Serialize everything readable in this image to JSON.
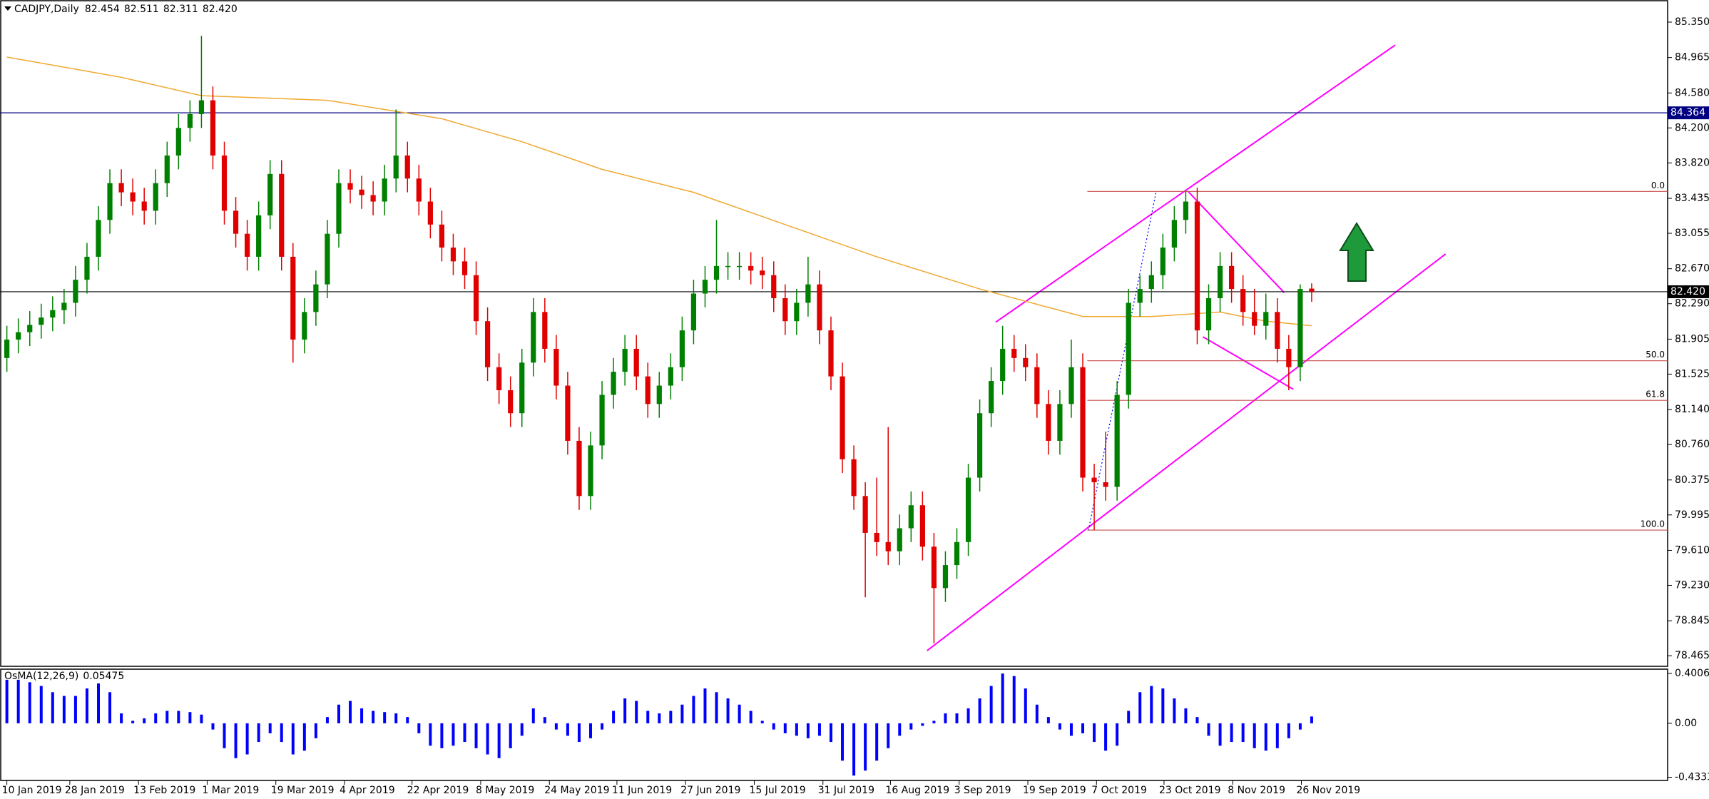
{
  "chart_data": {
    "type": "candlestick",
    "header": {
      "symbol": "CADJPY,Daily",
      "quote": [
        "82.454",
        "82.511",
        "82.311",
        "82.420"
      ]
    },
    "bull_color": "#008000",
    "bear_color": "#e00000",
    "ohlc": [
      [
        81.7,
        82.05,
        81.55,
        81.9
      ],
      [
        81.9,
        82.13,
        81.75,
        81.98
      ],
      [
        81.98,
        82.21,
        81.83,
        82.06
      ],
      [
        82.06,
        82.29,
        81.91,
        82.14
      ],
      [
        82.14,
        82.37,
        81.99,
        82.22
      ],
      [
        82.22,
        82.45,
        82.07,
        82.3
      ],
      [
        82.3,
        82.7,
        82.15,
        82.55
      ],
      [
        82.55,
        82.95,
        82.4,
        82.8
      ],
      [
        82.8,
        83.35,
        82.65,
        83.2
      ],
      [
        83.2,
        83.75,
        83.05,
        83.6
      ],
      [
        83.6,
        83.75,
        83.35,
        83.5
      ],
      [
        83.5,
        83.65,
        83.25,
        83.4
      ],
      [
        83.4,
        83.55,
        83.15,
        83.3
      ],
      [
        83.3,
        83.75,
        83.15,
        83.6
      ],
      [
        83.6,
        84.05,
        83.45,
        83.9
      ],
      [
        83.9,
        84.35,
        83.75,
        84.2
      ],
      [
        84.2,
        84.5,
        84.05,
        84.35
      ],
      [
        84.35,
        85.2,
        84.2,
        84.5
      ],
      [
        84.5,
        84.65,
        83.75,
        83.9
      ],
      [
        83.9,
        84.05,
        83.15,
        83.3
      ],
      [
        83.3,
        83.45,
        82.9,
        83.05
      ],
      [
        83.05,
        83.2,
        82.65,
        82.8
      ],
      [
        82.8,
        83.4,
        82.65,
        83.25
      ],
      [
        83.25,
        83.85,
        83.1,
        83.7
      ],
      [
        83.7,
        83.85,
        82.65,
        82.8
      ],
      [
        82.8,
        82.95,
        81.65,
        81.9
      ],
      [
        81.9,
        82.35,
        81.75,
        82.2
      ],
      [
        82.2,
        82.65,
        82.05,
        82.5
      ],
      [
        82.5,
        83.2,
        82.35,
        83.05
      ],
      [
        83.05,
        83.75,
        82.9,
        83.6
      ],
      [
        83.6,
        83.75,
        83.38,
        83.53
      ],
      [
        83.53,
        83.68,
        83.32,
        83.47
      ],
      [
        83.47,
        83.62,
        83.25,
        83.4
      ],
      [
        83.4,
        83.8,
        83.25,
        83.65
      ],
      [
        83.65,
        84.4,
        83.5,
        83.9
      ],
      [
        83.9,
        84.05,
        83.5,
        83.65
      ],
      [
        83.65,
        83.8,
        83.25,
        83.4
      ],
      [
        83.4,
        83.55,
        83.0,
        83.15
      ],
      [
        83.15,
        83.3,
        82.75,
        82.9
      ],
      [
        82.9,
        83.05,
        82.6,
        82.75
      ],
      [
        82.75,
        82.9,
        82.45,
        82.6
      ],
      [
        82.6,
        82.75,
        81.95,
        82.1
      ],
      [
        82.1,
        82.25,
        81.45,
        81.6
      ],
      [
        81.6,
        81.75,
        81.2,
        81.35
      ],
      [
        81.35,
        81.5,
        80.95,
        81.1
      ],
      [
        81.1,
        81.8,
        80.95,
        81.65
      ],
      [
        81.65,
        82.35,
        81.5,
        82.2
      ],
      [
        82.2,
        82.35,
        81.65,
        81.8
      ],
      [
        81.8,
        81.95,
        81.25,
        81.4
      ],
      [
        81.4,
        81.55,
        80.65,
        80.8
      ],
      [
        80.8,
        80.95,
        80.05,
        80.2
      ],
      [
        80.2,
        80.9,
        80.05,
        80.75
      ],
      [
        80.75,
        81.45,
        80.6,
        81.3
      ],
      [
        81.3,
        81.7,
        81.15,
        81.55
      ],
      [
        81.55,
        81.95,
        81.4,
        81.8
      ],
      [
        81.8,
        81.95,
        81.35,
        81.5
      ],
      [
        81.5,
        81.65,
        81.05,
        81.2
      ],
      [
        81.2,
        81.55,
        81.05,
        81.4
      ],
      [
        81.4,
        81.75,
        81.25,
        81.6
      ],
      [
        81.6,
        82.15,
        81.45,
        82.0
      ],
      [
        82.0,
        82.55,
        81.85,
        82.4
      ],
      [
        82.4,
        82.7,
        82.25,
        82.55
      ],
      [
        82.55,
        83.2,
        82.4,
        82.7
      ],
      [
        82.7,
        82.85,
        82.55,
        82.7
      ],
      [
        82.7,
        82.85,
        82.55,
        82.7
      ],
      [
        82.7,
        82.85,
        82.5,
        82.65
      ],
      [
        82.65,
        82.8,
        82.45,
        82.6
      ],
      [
        82.6,
        82.75,
        82.2,
        82.35
      ],
      [
        82.35,
        82.5,
        81.95,
        82.1
      ],
      [
        82.1,
        82.45,
        81.95,
        82.3
      ],
      [
        82.3,
        82.8,
        82.15,
        82.5
      ],
      [
        82.5,
        82.65,
        81.85,
        82.0
      ],
      [
        82.0,
        82.15,
        81.35,
        81.5
      ],
      [
        81.5,
        81.65,
        80.45,
        80.6
      ],
      [
        80.6,
        80.75,
        80.05,
        80.2
      ],
      [
        80.2,
        80.35,
        79.1,
        79.8
      ],
      [
        79.8,
        80.4,
        79.55,
        79.7
      ],
      [
        79.7,
        80.95,
        79.45,
        79.6
      ],
      [
        79.6,
        80.0,
        79.45,
        79.85
      ],
      [
        79.85,
        80.25,
        79.7,
        80.1
      ],
      [
        80.1,
        80.25,
        79.5,
        79.65
      ],
      [
        79.65,
        79.8,
        78.6,
        79.2
      ],
      [
        79.2,
        79.6,
        79.05,
        79.45
      ],
      [
        79.45,
        79.85,
        79.3,
        79.7
      ],
      [
        79.7,
        80.55,
        79.55,
        80.4
      ],
      [
        80.4,
        81.25,
        80.25,
        81.1
      ],
      [
        81.1,
        81.6,
        80.95,
        81.45
      ],
      [
        81.45,
        82.05,
        81.3,
        81.8
      ],
      [
        81.8,
        81.95,
        81.55,
        81.7
      ],
      [
        81.7,
        81.85,
        81.45,
        81.6
      ],
      [
        81.6,
        81.75,
        81.05,
        81.2
      ],
      [
        81.2,
        81.35,
        80.65,
        80.8
      ],
      [
        80.8,
        81.35,
        80.65,
        81.2
      ],
      [
        81.2,
        81.9,
        81.05,
        81.6
      ],
      [
        81.6,
        81.75,
        80.25,
        80.4
      ],
      [
        80.4,
        80.55,
        79.83,
        80.35
      ],
      [
        80.35,
        80.9,
        80.15,
        80.3
      ],
      [
        80.3,
        81.45,
        80.15,
        81.3
      ],
      [
        81.3,
        82.45,
        81.15,
        82.3
      ],
      [
        82.3,
        82.6,
        82.15,
        82.45
      ],
      [
        82.45,
        82.75,
        82.3,
        82.6
      ],
      [
        82.6,
        83.05,
        82.45,
        82.9
      ],
      [
        82.9,
        83.35,
        82.75,
        83.2
      ],
      [
        83.2,
        83.51,
        83.05,
        83.4
      ],
      [
        83.4,
        83.55,
        81.85,
        82.0
      ],
      [
        82.0,
        82.5,
        81.85,
        82.35
      ],
      [
        82.35,
        82.85,
        82.2,
        82.7
      ],
      [
        82.7,
        82.85,
        82.3,
        82.45
      ],
      [
        82.45,
        82.6,
        82.05,
        82.2
      ],
      [
        82.2,
        82.45,
        81.95,
        82.05
      ],
      [
        82.05,
        82.4,
        81.9,
        82.2
      ],
      [
        82.2,
        82.35,
        81.65,
        81.8
      ],
      [
        81.8,
        81.95,
        81.35,
        81.6
      ],
      [
        81.6,
        82.5,
        81.45,
        82.45
      ],
      [
        82.454,
        82.511,
        82.311,
        82.42
      ]
    ],
    "xlim": [
      -0.6,
      145.1
    ],
    "xticks": [
      {
        "value": 0,
        "label": "10 Jan 2019"
      },
      {
        "value": 5.5,
        "label": "28 Jan 2019"
      },
      {
        "value": 11.5,
        "label": "13 Feb 2019"
      },
      {
        "value": 17.5,
        "label": "1 Mar 2019"
      },
      {
        "value": 23.5,
        "label": "19 Mar 2019"
      },
      {
        "value": 29.5,
        "label": "4 Apr 2019"
      },
      {
        "value": 35.4,
        "label": "22 Apr 2019"
      },
      {
        "value": 41.4,
        "label": "8 May 2019"
      },
      {
        "value": 47.4,
        "label": "24 May 2019"
      },
      {
        "value": 53.3,
        "label": "11 Jun 2019"
      },
      {
        "value": 59.3,
        "label": "27 Jun 2019"
      },
      {
        "value": 65.3,
        "label": "15 Jul 2019"
      },
      {
        "value": 71.3,
        "label": "31 Jul 2019"
      },
      {
        "value": 77.2,
        "label": "16 Aug 2019"
      },
      {
        "value": 83.2,
        "label": "3 Sep 2019"
      },
      {
        "value": 89.2,
        "label": "19 Sep 2019"
      },
      {
        "value": 95.2,
        "label": "7 Oct 2019"
      },
      {
        "value": 101.1,
        "label": "23 Oct 2019"
      },
      {
        "value": 107.1,
        "label": "8 Nov 2019"
      },
      {
        "value": 113.1,
        "label": "26 Nov 2019"
      }
    ],
    "ylim": [
      78.35,
      85.59
    ],
    "yticks": [
      {
        "value": 85.35,
        "label": "85.350"
      },
      84.965,
      {
        "value": 84.58,
        "label": "84.580"
      },
      {
        "value": 84.2,
        "label": "84.200"
      },
      {
        "value": 83.82,
        "label": "83.820"
      },
      83.435,
      83.055,
      {
        "value": 82.67,
        "label": "82.670"
      },
      {
        "value": 82.29,
        "label": "82.290"
      },
      81.905,
      81.525,
      {
        "value": 81.14,
        "label": "81.140"
      },
      {
        "value": 80.76,
        "label": "80.760"
      },
      80.375,
      79.995,
      {
        "value": 79.61,
        "label": "79.610"
      },
      {
        "value": 79.23,
        "label": "79.230"
      },
      78.845,
      78.465
    ],
    "grid": false,
    "ma": {
      "color": "#f0a830",
      "x": [
        0,
        10,
        17,
        28,
        38,
        45,
        52,
        60,
        68,
        76,
        85,
        94,
        100,
        106,
        110,
        114
      ],
      "values": [
        84.97,
        84.75,
        84.55,
        84.5,
        84.3,
        84.05,
        83.75,
        83.5,
        83.15,
        82.8,
        82.45,
        82.15,
        82.15,
        82.2,
        82.1,
        82.05
      ]
    },
    "hlines": [
      {
        "price": 84.364,
        "label": "84.364",
        "color": "#000080"
      },
      {
        "price": 82.42,
        "label": "82.420",
        "color": "#000000"
      }
    ],
    "fib": {
      "color": "#c84a4a",
      "x_start": 94.4,
      "levels": [
        {
          "price": 83.51,
          "label": "0.0"
        },
        {
          "price": 81.67,
          "label": "50.0"
        },
        {
          "price": 81.24,
          "label": "61.8"
        },
        {
          "price": 79.83,
          "label": "100.0"
        }
      ]
    },
    "trendlines": [
      {
        "x": [
          80.4,
          125.7
        ],
        "y": [
          78.52,
          82.83
        ],
        "color": "#ff00ff",
        "style": "solid"
      },
      {
        "x": [
          86.4,
          121.3
        ],
        "y": [
          82.09,
          85.1
        ],
        "color": "#ff00ff",
        "style": "solid"
      },
      {
        "x": [
          103.2,
          111.6
        ],
        "y": [
          83.51,
          82.41
        ],
        "color": "#ff00ff",
        "style": "solid"
      },
      {
        "x": [
          104.5,
          112.4
        ],
        "y": [
          81.93,
          81.36
        ],
        "color": "#ff00ff",
        "style": "solid"
      },
      {
        "x": [
          94.5,
          100.4
        ],
        "y": [
          79.83,
          83.5
        ],
        "color": "#0000ff",
        "style": "dotted"
      }
    ],
    "osma": {
      "name": "OsMA(12,26,9)",
      "color": "#0000ff",
      "ylim": [
        -0.43335,
        0.40063
      ],
      "yticks": [
        0.40063,
        {
          "value": 0,
          "label": "0.00"
        },
        -0.43335
      ],
      "values": [
        0.35,
        0.35,
        0.33,
        0.3,
        0.25,
        0.22,
        0.22,
        0.28,
        0.32,
        0.25,
        0.08,
        0.02,
        0.04,
        0.08,
        0.1,
        0.1,
        0.09,
        0.07,
        -0.05,
        -0.2,
        -0.28,
        -0.25,
        -0.15,
        -0.08,
        -0.15,
        -0.25,
        -0.22,
        -0.12,
        0.05,
        0.15,
        0.18,
        0.12,
        0.1,
        0.09,
        0.08,
        0.05,
        -0.08,
        -0.18,
        -0.2,
        -0.18,
        -0.15,
        -0.2,
        -0.25,
        -0.28,
        -0.2,
        -0.1,
        0.12,
        0.05,
        -0.05,
        -0.1,
        -0.15,
        -0.12,
        -0.05,
        0.1,
        0.2,
        0.18,
        0.1,
        0.08,
        0.1,
        0.15,
        0.22,
        0.28,
        0.25,
        0.2,
        0.15,
        0.1,
        0.02,
        -0.05,
        -0.08,
        -0.1,
        -0.12,
        -0.1,
        -0.15,
        -0.3,
        -0.42,
        -0.38,
        -0.3,
        -0.2,
        -0.1,
        -0.05,
        -0.02,
        0.02,
        0.08,
        0.08,
        0.12,
        0.2,
        0.3,
        0.4,
        0.38,
        0.28,
        0.15,
        0.05,
        -0.05,
        -0.1,
        -0.08,
        -0.15,
        -0.22,
        -0.18,
        0.1,
        0.25,
        0.3,
        0.28,
        0.2,
        0.12,
        0.05,
        -0.1,
        -0.18,
        -0.15,
        -0.15,
        -0.2,
        -0.22,
        -0.2,
        -0.12,
        -0.05,
        0.05475
      ]
    }
  }
}
